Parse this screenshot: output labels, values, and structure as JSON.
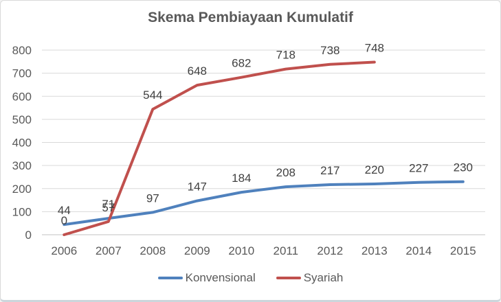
{
  "chart_data": {
    "type": "line",
    "title": "Skema Pembiayaan Kumulatif",
    "categories": [
      "2006",
      "2007",
      "2008",
      "2009",
      "2010",
      "2011",
      "2012",
      "2013",
      "2014",
      "2015"
    ],
    "series": [
      {
        "name": "Konvensional",
        "color": "#4F81BD",
        "values": [
          44,
          71,
          97,
          147,
          184,
          208,
          217,
          220,
          227,
          230
        ]
      },
      {
        "name": "Syariah",
        "color": "#C0504D",
        "values": [
          0,
          57,
          544,
          648,
          682,
          718,
          738,
          748,
          null,
          null
        ]
      }
    ],
    "xlabel": "",
    "ylabel": "",
    "ylim": [
      0,
      800
    ],
    "y_ticks": [
      0,
      100,
      200,
      300,
      400,
      500,
      600,
      700,
      800
    ],
    "grid": true,
    "data_labels": true,
    "legend_position": "bottom",
    "colors": {
      "grid": "#d9d9d9",
      "axis": "#c0c0c0",
      "axis_text": "#595959",
      "label_text": "#404040",
      "title_text": "#595959"
    }
  }
}
